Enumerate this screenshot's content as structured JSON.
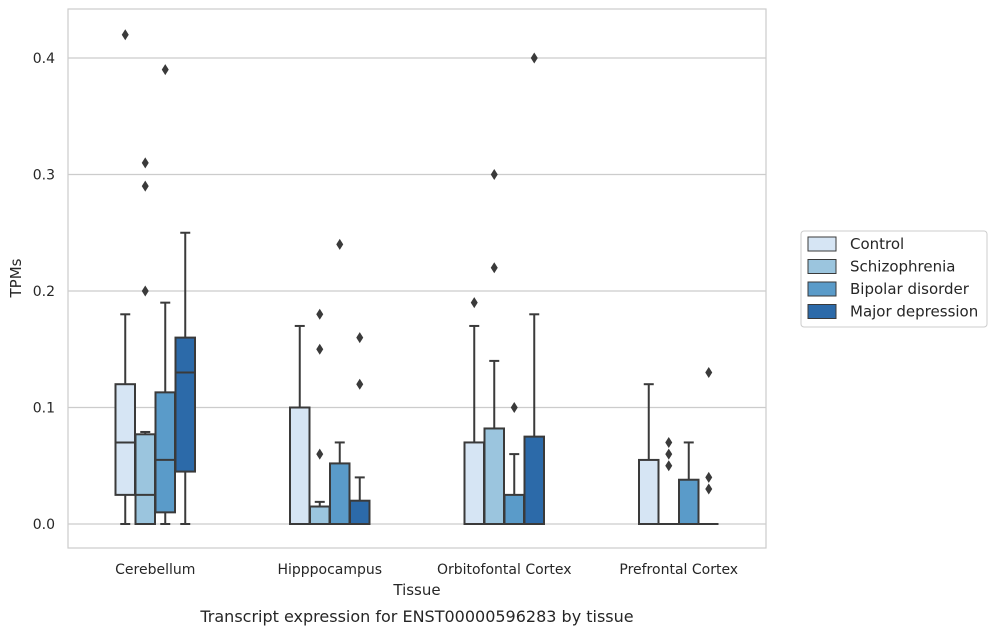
{
  "chart_data": {
    "type": "box",
    "title": "",
    "caption": "Transcript expression for ENST00000596283 by tissue",
    "xlabel": "Tissue",
    "ylabel": "TPMs",
    "ylim": [
      -0.02,
      0.442
    ],
    "yticks": [
      0.0,
      0.1,
      0.2,
      0.3,
      0.4
    ],
    "ytick_labels": [
      "0.0",
      "0.1",
      "0.2",
      "0.3",
      "0.4"
    ],
    "grid": "horizontal",
    "legend_position": "right",
    "categories": [
      "Cerebellum",
      "Hipppocampus",
      "Orbitofontal Cortex",
      "Prefrontal Cortex"
    ],
    "series": [
      {
        "name": "Control",
        "color": "#d6e5f4",
        "boxes": [
          {
            "whislo": 0.0,
            "q1": 0.025,
            "med": 0.07,
            "q3": 0.12,
            "whishi": 0.18,
            "fliers": [
              0.42
            ]
          },
          {
            "whislo": 0.0,
            "q1": 0.0,
            "med": 0.0,
            "q3": 0.1,
            "whishi": 0.17,
            "fliers": []
          },
          {
            "whislo": 0.0,
            "q1": 0.0,
            "med": 0.0,
            "q3": 0.07,
            "whishi": 0.17,
            "fliers": [
              0.19
            ]
          },
          {
            "whislo": 0.0,
            "q1": 0.0,
            "med": 0.0,
            "q3": 0.055,
            "whishi": 0.12,
            "fliers": []
          }
        ]
      },
      {
        "name": "Schizophrenia",
        "color": "#9bc5de",
        "boxes": [
          {
            "whislo": 0.0,
            "q1": 0.0,
            "med": 0.025,
            "q3": 0.077,
            "whishi": 0.079,
            "fliers": [
              0.2,
              0.29,
              0.31
            ]
          },
          {
            "whislo": 0.0,
            "q1": 0.0,
            "med": 0.0,
            "q3": 0.015,
            "whishi": 0.019,
            "fliers": [
              0.06,
              0.15,
              0.18
            ]
          },
          {
            "whislo": 0.0,
            "q1": 0.0,
            "med": 0.0,
            "q3": 0.082,
            "whishi": 0.14,
            "fliers": [
              0.22,
              0.3
            ]
          },
          {
            "whislo": 0.0,
            "q1": 0.0,
            "med": 0.0,
            "q3": 0.0,
            "whishi": 0.0,
            "fliers": [
              0.05,
              0.06,
              0.07
            ]
          }
        ]
      },
      {
        "name": "Bipolar disorder",
        "color": "#5a9bc9",
        "boxes": [
          {
            "whislo": 0.0,
            "q1": 0.01,
            "med": 0.055,
            "q3": 0.113,
            "whishi": 0.19,
            "fliers": [
              0.39
            ]
          },
          {
            "whislo": 0.0,
            "q1": 0.0,
            "med": 0.0,
            "q3": 0.052,
            "whishi": 0.07,
            "fliers": [
              0.24
            ]
          },
          {
            "whislo": 0.0,
            "q1": 0.0,
            "med": 0.0,
            "q3": 0.025,
            "whishi": 0.06,
            "fliers": [
              0.1
            ]
          },
          {
            "whislo": 0.0,
            "q1": 0.0,
            "med": 0.0,
            "q3": 0.038,
            "whishi": 0.07,
            "fliers": []
          }
        ]
      },
      {
        "name": "Major depression",
        "color": "#2c6aa9",
        "boxes": [
          {
            "whislo": 0.0,
            "q1": 0.045,
            "med": 0.13,
            "q3": 0.16,
            "whishi": 0.25,
            "fliers": []
          },
          {
            "whislo": 0.0,
            "q1": 0.0,
            "med": 0.0,
            "q3": 0.02,
            "whishi": 0.04,
            "fliers": [
              0.12,
              0.16
            ]
          },
          {
            "whislo": 0.0,
            "q1": 0.0,
            "med": 0.0,
            "q3": 0.075,
            "whishi": 0.18,
            "fliers": [
              0.4
            ]
          },
          {
            "whislo": 0.0,
            "q1": 0.0,
            "med": 0.0,
            "q3": 0.0,
            "whishi": 0.0,
            "fliers": [
              0.03,
              0.04,
              0.13
            ]
          }
        ]
      }
    ]
  }
}
